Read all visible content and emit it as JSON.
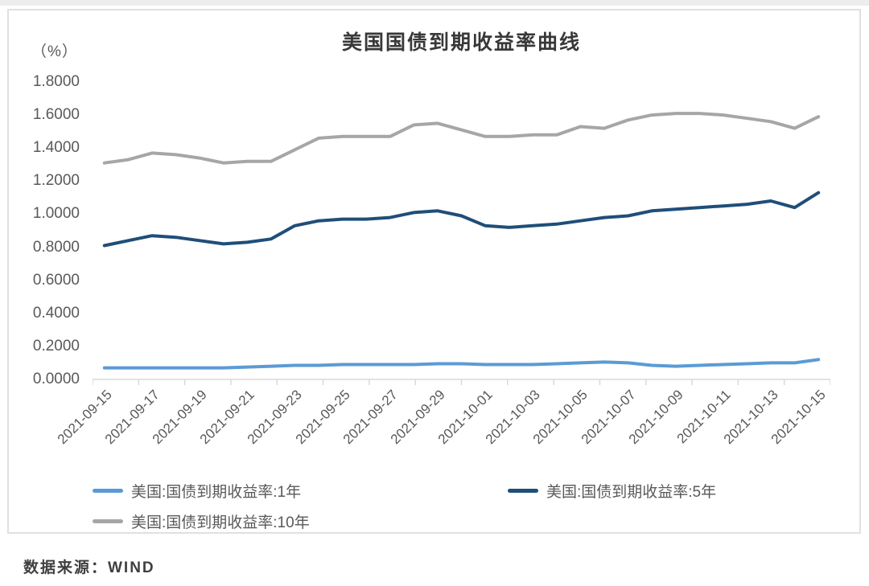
{
  "page": {
    "title": "美国国债到期收益率曲线",
    "unit_label": "（%）",
    "source_label": "数据来源：WIND"
  },
  "colors": {
    "series_1y": "#5B9BD5",
    "series_5y": "#1F4E79",
    "series_10y": "#A6A6A6",
    "axis": "#D9D9D9",
    "tick_text": "#595959",
    "title_text": "#383838"
  },
  "chart_data": {
    "type": "line",
    "title": "美国国债到期收益率曲线",
    "ylabel": "（%）",
    "ylim": [
      0.0,
      1.8
    ],
    "ytick_step": 0.2,
    "ytick_labels": [
      "1.8000",
      "1.6000",
      "1.4000",
      "1.2000",
      "1.0000",
      "0.8000",
      "0.6000",
      "0.4000",
      "0.2000",
      "0.0000"
    ],
    "grid": false,
    "legend_position": "bottom",
    "x": [
      "2021-09-15",
      "2021-09-16",
      "2021-09-17",
      "2021-09-18",
      "2021-09-19",
      "2021-09-20",
      "2021-09-21",
      "2021-09-22",
      "2021-09-23",
      "2021-09-24",
      "2021-09-25",
      "2021-09-26",
      "2021-09-27",
      "2021-09-28",
      "2021-09-29",
      "2021-09-30",
      "2021-10-01",
      "2021-10-02",
      "2021-10-03",
      "2021-10-04",
      "2021-10-05",
      "2021-10-06",
      "2021-10-07",
      "2021-10-08",
      "2021-10-09",
      "2021-10-10",
      "2021-10-11",
      "2021-10-12",
      "2021-10-13",
      "2021-10-14",
      "2021-10-15"
    ],
    "xtick_labels": [
      "2021-09-15",
      "2021-09-17",
      "2021-09-19",
      "2021-09-21",
      "2021-09-23",
      "2021-09-25",
      "2021-09-27",
      "2021-09-29",
      "2021-10-01",
      "2021-10-03",
      "2021-10-05",
      "2021-10-07",
      "2021-10-09",
      "2021-10-11",
      "2021-10-13",
      "2021-10-15"
    ],
    "xtick_every": 2,
    "series": [
      {
        "name": "美国:国债到期收益率:1年",
        "color": "#5B9BD5",
        "values": [
          0.07,
          0.07,
          0.07,
          0.07,
          0.07,
          0.07,
          0.075,
          0.08,
          0.085,
          0.085,
          0.09,
          0.09,
          0.09,
          0.09,
          0.095,
          0.095,
          0.09,
          0.09,
          0.09,
          0.095,
          0.1,
          0.105,
          0.1,
          0.085,
          0.08,
          0.085,
          0.09,
          0.095,
          0.1,
          0.1,
          0.12
        ]
      },
      {
        "name": "美国:国债到期收益率:5年",
        "color": "#1F4E79",
        "values": [
          0.81,
          0.84,
          0.87,
          0.86,
          0.84,
          0.82,
          0.83,
          0.85,
          0.93,
          0.96,
          0.97,
          0.97,
          0.98,
          1.01,
          1.02,
          0.99,
          0.93,
          0.92,
          0.93,
          0.94,
          0.96,
          0.98,
          0.99,
          1.02,
          1.03,
          1.04,
          1.05,
          1.06,
          1.08,
          1.04,
          1.13
        ]
      },
      {
        "name": "美国:国债到期收益率:10年",
        "color": "#A6A6A6",
        "values": [
          1.31,
          1.33,
          1.37,
          1.36,
          1.34,
          1.31,
          1.32,
          1.32,
          1.39,
          1.46,
          1.47,
          1.47,
          1.47,
          1.54,
          1.55,
          1.51,
          1.47,
          1.47,
          1.48,
          1.48,
          1.53,
          1.52,
          1.57,
          1.6,
          1.61,
          1.61,
          1.6,
          1.58,
          1.56,
          1.52,
          1.59
        ]
      }
    ],
    "legend": [
      {
        "label": "美国:国债到期收益率:1年",
        "color": "#5B9BD5"
      },
      {
        "label": "美国:国债到期收益率:5年",
        "color": "#1F4E79"
      },
      {
        "label": "美国:国债到期收益率:10年",
        "color": "#A6A6A6"
      }
    ]
  }
}
